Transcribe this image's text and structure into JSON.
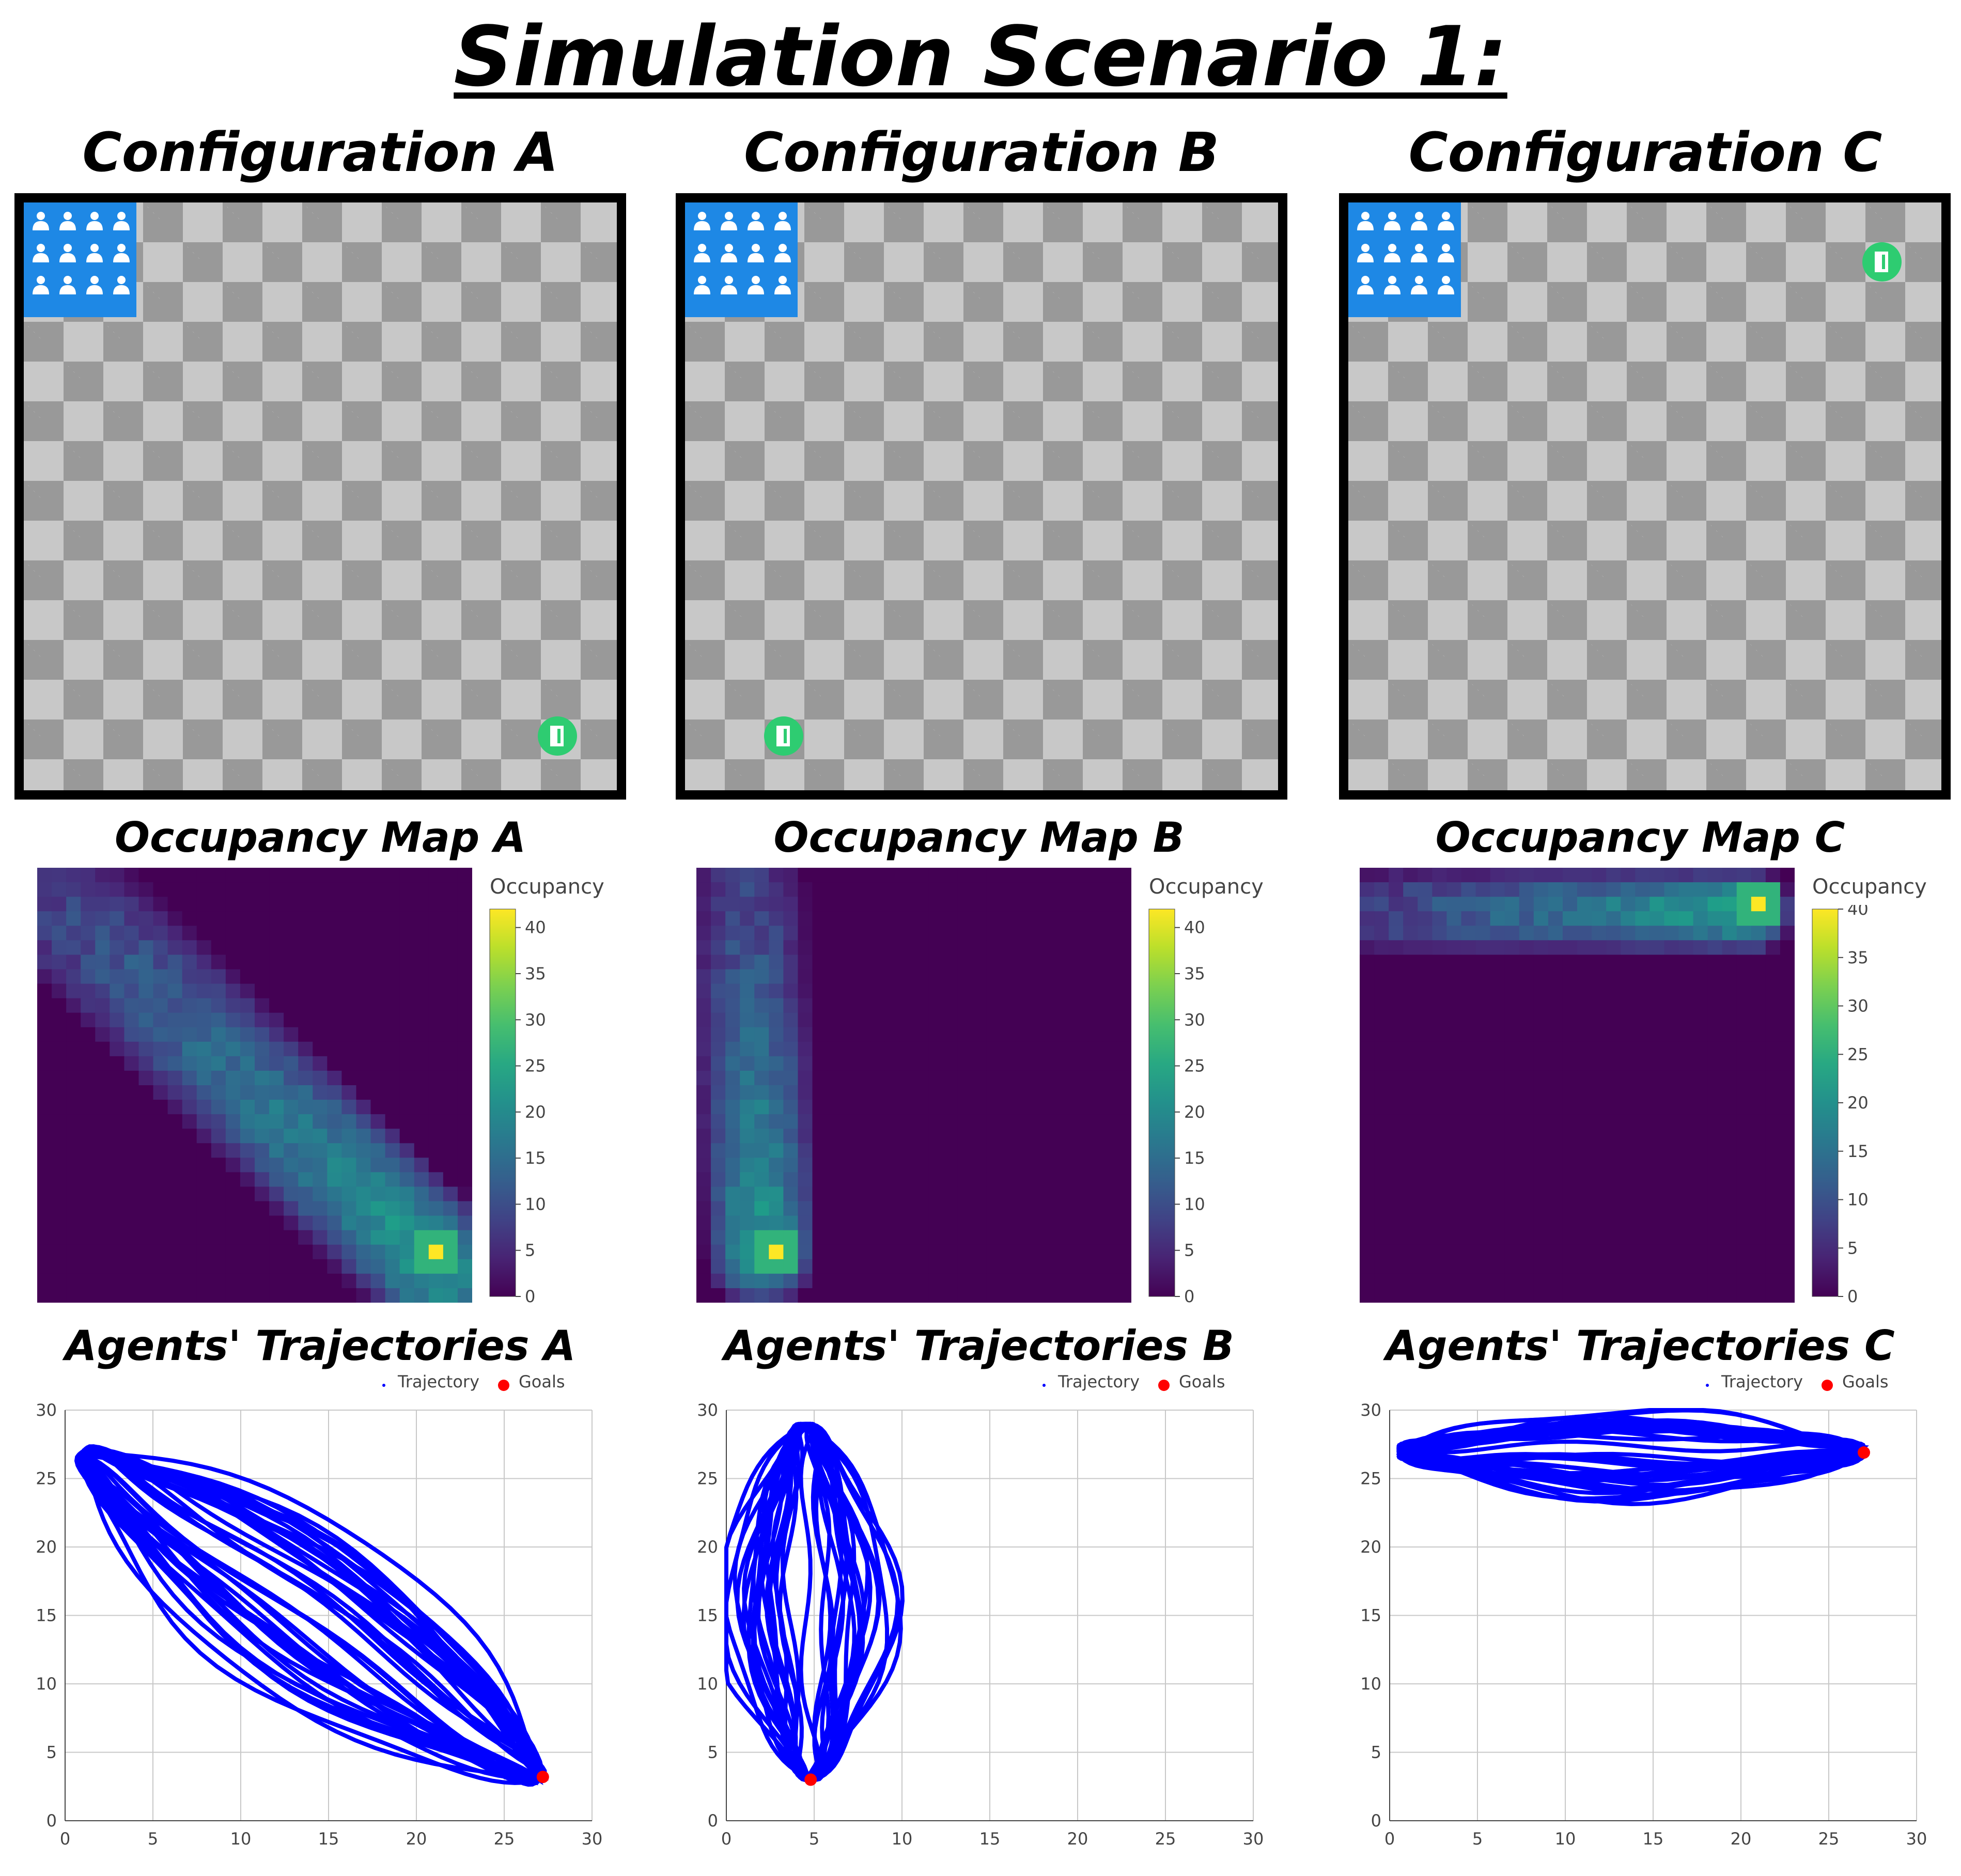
{
  "title": "Simulation Scenario 1:",
  "configurations": [
    {
      "title": "Configuration A",
      "grid_cells": 15,
      "crowd_icon": "people-group-icon",
      "goal_icon": "door-exit-icon",
      "goal_cell": [
        13,
        13
      ]
    },
    {
      "title": "Configuration B",
      "grid_cells": 15,
      "crowd_icon": "people-group-icon",
      "goal_icon": "door-exit-icon",
      "goal_cell": [
        2,
        13
      ]
    },
    {
      "title": "Configuration C",
      "grid_cells": 15,
      "crowd_icon": "people-group-icon",
      "goal_icon": "door-exit-icon",
      "goal_cell": [
        13,
        1
      ]
    }
  ],
  "occupancy_maps": [
    {
      "title": "Occupancy Map A",
      "colorbar_title": "Occupancy",
      "colorbar_ticks": [
        "0",
        "5",
        "10",
        "15",
        "20",
        "25",
        "30",
        "35",
        "40"
      ]
    },
    {
      "title": "Occupancy Map B",
      "colorbar_title": "Occupancy",
      "colorbar_ticks": [
        "0",
        "5",
        "10",
        "15",
        "20",
        "25",
        "30",
        "35",
        "40"
      ]
    },
    {
      "title": "Occupancy Map C",
      "colorbar_title": "Occupancy",
      "colorbar_ticks": [
        "0",
        "5",
        "10",
        "15",
        "20",
        "25",
        "30",
        "35",
        "40"
      ]
    }
  ],
  "trajectories": [
    {
      "title": "Agents' Trajectories A",
      "legend": {
        "trajectory": "Trajectory",
        "goals": "Goals"
      }
    },
    {
      "title": "Agents' Trajectories B",
      "legend": {
        "trajectory": "Trajectory",
        "goals": "Goals"
      }
    },
    {
      "title": "Agents' Trajectories C",
      "legend": {
        "trajectory": "Trajectory",
        "goals": "Goals"
      }
    }
  ],
  "chart_data": [
    {
      "type": "heatmap",
      "title": "Occupancy Map A",
      "colorscale": "viridis",
      "zlim": [
        0,
        42
      ],
      "grid": [
        30,
        30
      ],
      "band": {
        "from": [
          0.5,
          28.5
        ],
        "to": [
          27.5,
          2.5
        ],
        "width": 5.0
      },
      "peak": {
        "x": 27,
        "y": 3,
        "value": 42
      }
    },
    {
      "type": "heatmap",
      "title": "Occupancy Map B",
      "colorscale": "viridis",
      "zlim": [
        0,
        42
      ],
      "grid": [
        30,
        30
      ],
      "band": {
        "from": [
          3.5,
          28.5
        ],
        "to": [
          4.5,
          3.5
        ],
        "width": 4.0
      },
      "peak": {
        "x": 5,
        "y": 3,
        "value": 42
      }
    },
    {
      "type": "heatmap",
      "title": "Occupancy Map C",
      "colorscale": "viridis",
      "zlim": [
        0,
        40
      ],
      "grid": [
        30,
        30
      ],
      "band": {
        "from": [
          1.5,
          27.0
        ],
        "to": [
          27.0,
          27.0
        ],
        "width": 3.0
      },
      "peak": {
        "x": 27,
        "y": 27,
        "value": 40
      }
    },
    {
      "type": "line",
      "title": "Agents' Trajectories A",
      "xlim": [
        0,
        30
      ],
      "ylim": [
        0,
        30
      ],
      "xticks": [
        0,
        5,
        10,
        15,
        20,
        25,
        30
      ],
      "yticks": [
        0,
        5,
        10,
        15,
        20,
        25,
        30
      ],
      "series": [
        {
          "name": "Trajectory",
          "color": "#0000ff",
          "region": {
            "start": [
              1,
              27
            ],
            "goal": [
              27,
              3
            ],
            "halfwidth": 4.5
          }
        },
        {
          "name": "Goals",
          "color": "#ff0000",
          "points": [
            [
              27.2,
              3.2
            ]
          ]
        }
      ]
    },
    {
      "type": "line",
      "title": "Agents' Trajectories B",
      "xlim": [
        0,
        30
      ],
      "ylim": [
        0,
        30
      ],
      "xticks": [
        0,
        5,
        10,
        15,
        20,
        25,
        30
      ],
      "yticks": [
        0,
        5,
        10,
        15,
        20,
        25,
        30
      ],
      "series": [
        {
          "name": "Trajectory",
          "color": "#0000ff",
          "region": {
            "start": [
              4.5,
              29
            ],
            "goal": [
              4.8,
              3
            ],
            "halfwidth": 4.0
          }
        },
        {
          "name": "Goals",
          "color": "#ff0000",
          "points": [
            [
              4.8,
              3.0
            ]
          ]
        }
      ]
    },
    {
      "type": "line",
      "title": "Agents' Trajectories C",
      "xlim": [
        0,
        30
      ],
      "ylim": [
        0,
        30
      ],
      "xticks": [
        0,
        5,
        10,
        15,
        20,
        25,
        30
      ],
      "yticks": [
        0,
        5,
        10,
        15,
        20,
        25,
        30
      ],
      "series": [
        {
          "name": "Trajectory",
          "color": "#0000ff",
          "region": {
            "start": [
              0.5,
              27
            ],
            "goal": [
              27,
              27
            ],
            "halfwidth": 2.6
          }
        },
        {
          "name": "Goals",
          "color": "#ff0000",
          "points": [
            [
              27.0,
              26.9
            ]
          ]
        }
      ]
    }
  ]
}
